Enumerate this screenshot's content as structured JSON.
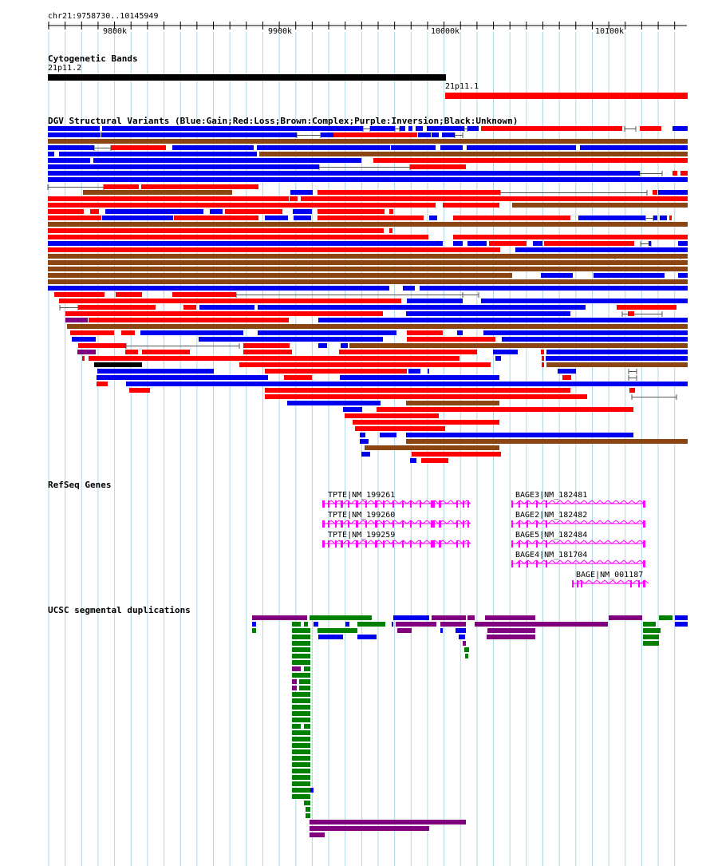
{
  "ruler": {
    "region_label": "chr21:9758730..10145949",
    "ticks": [
      "9800k",
      "9900k",
      "10000k",
      "10100k"
    ]
  },
  "tracks": {
    "cytoband": {
      "title": "Cytogenetic Bands",
      "bands": [
        {
          "name": "21p11.2",
          "color": "#000000"
        },
        {
          "name": "21p11.1",
          "color": "#ff0000"
        }
      ]
    },
    "dgv": {
      "title": "DGV Structural Variants (Blue:Gain;Red:Loss;Brown:Complex;Purple:Inversion;Black:Unknown)",
      "legend": [
        {
          "type": "Gain",
          "color": "#0000ee"
        },
        {
          "type": "Loss",
          "color": "#ff0000"
        },
        {
          "type": "Complex",
          "color": "#8b4513"
        },
        {
          "type": "Inversion",
          "color": "#800080"
        },
        {
          "type": "Unknown",
          "color": "#000000"
        }
      ]
    },
    "refseq": {
      "title": "RefSeq Genes",
      "color": "#ff00ff",
      "genes": [
        "TPTE|NM_199261",
        "TPTE|NM_199260",
        "TPTE|NM_199259",
        "BAGE3|NM_182481",
        "BAGE2|NM_182482",
        "BAGE5|NM_182484",
        "BAGE4|NM_181704",
        "BAGE|NM_001187"
      ]
    },
    "segdups": {
      "title": "UCSC segmental duplications",
      "colors": {
        "purple": "#800080",
        "green": "#008000",
        "blue": "#0000ee"
      }
    }
  }
}
